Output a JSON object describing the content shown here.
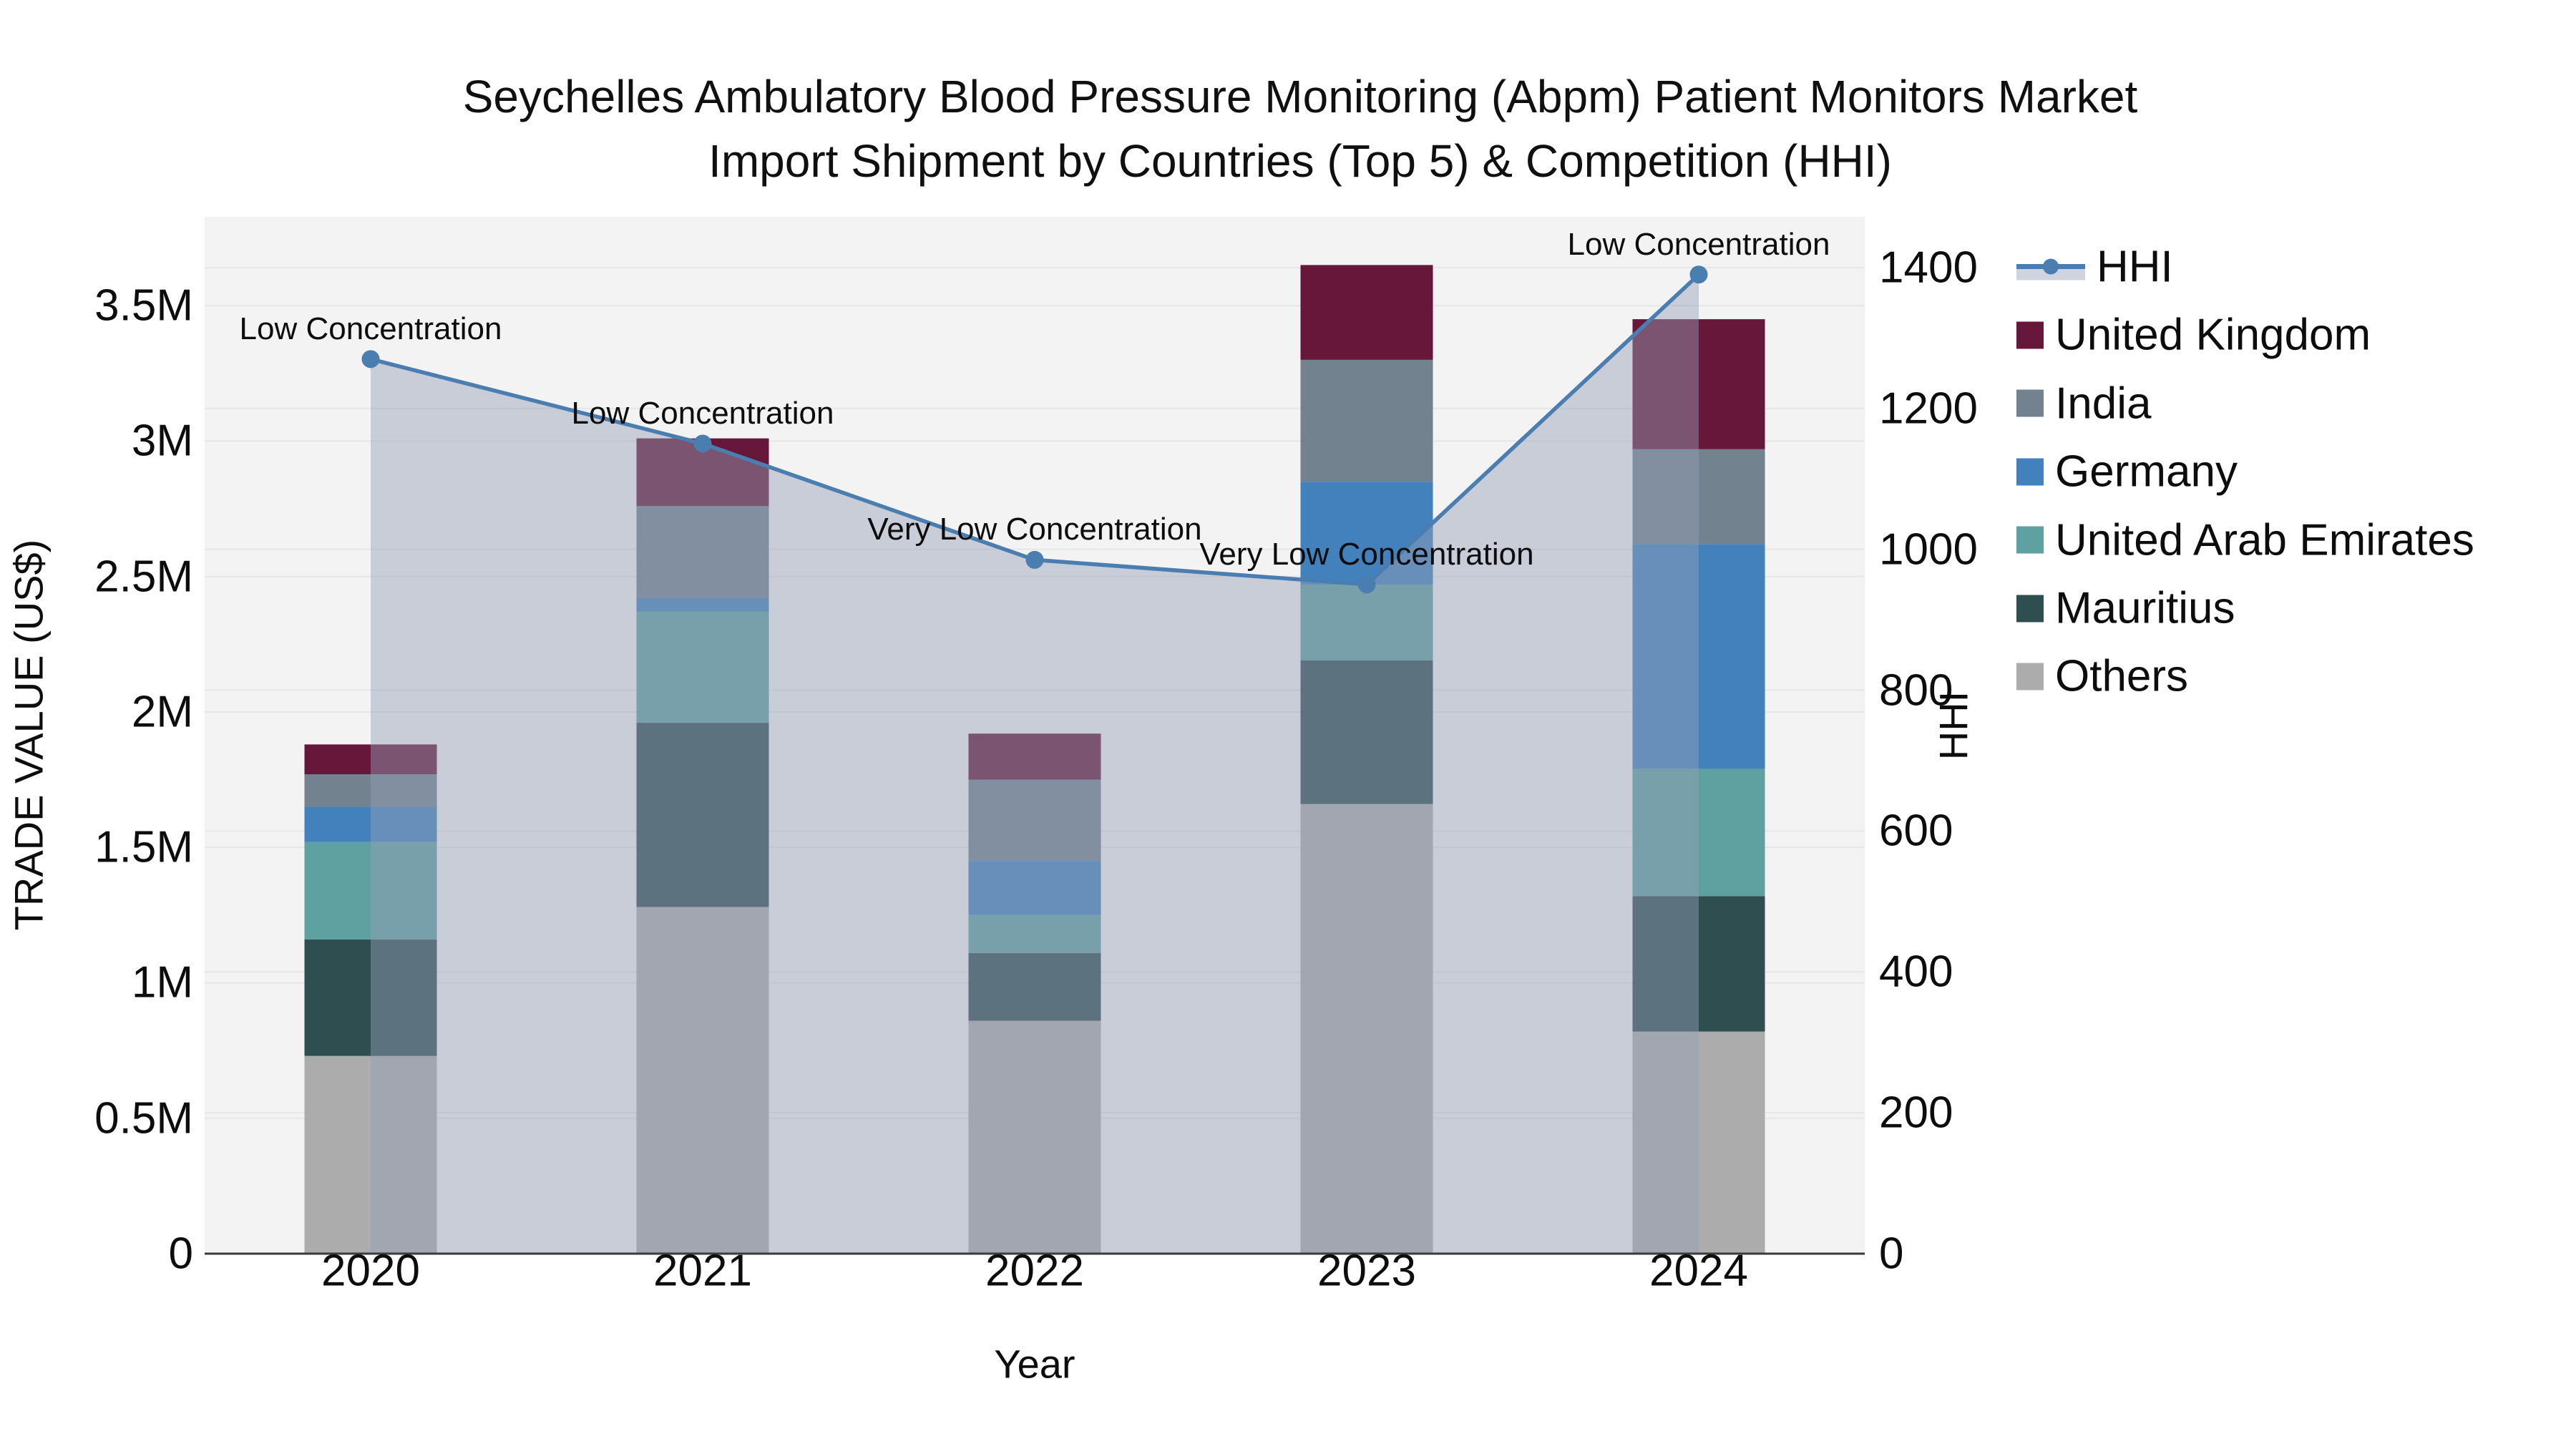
{
  "title": {
    "line1": "Seychelles Ambulatory Blood Pressure Monitoring (Abpm) Patient Monitors Market",
    "line2": "Import Shipment by Countries (Top 5) & Competition (HHI)"
  },
  "chart_data": {
    "type": "combo-stacked-bar-line",
    "categories": [
      "2020",
      "2021",
      "2022",
      "2023",
      "2024"
    ],
    "bar_series": [
      {
        "name": "Others",
        "color": "#ACACAC",
        "values": [
          730000,
          1280000,
          860000,
          1660000,
          820000
        ]
      },
      {
        "name": "Mauritius",
        "color": "#2E4E50",
        "values": [
          430000,
          680000,
          250000,
          530000,
          500000
        ]
      },
      {
        "name": "United Arab Emirates",
        "color": "#5FA0A1",
        "values": [
          360000,
          410000,
          140000,
          280000,
          470000
        ]
      },
      {
        "name": "Germany",
        "color": "#4281BB",
        "values": [
          130000,
          50000,
          200000,
          380000,
          830000
        ]
      },
      {
        "name": "India",
        "color": "#73828F",
        "values": [
          120000,
          340000,
          300000,
          450000,
          350000
        ]
      },
      {
        "name": "United Kingdom",
        "color": "#66173A",
        "values": [
          110000,
          250000,
          170000,
          350000,
          480000
        ]
      }
    ],
    "line_series": {
      "name": "HHI",
      "color": "#4A7EB0",
      "fill_color": "rgba(148,160,184,0.45)",
      "values": [
        1270,
        1150,
        985,
        950,
        1390
      ]
    },
    "annotations": [
      {
        "category": "2020",
        "text": "Low Concentration"
      },
      {
        "category": "2021",
        "text": "Low Concentration"
      },
      {
        "category": "2022",
        "text": "Very Low Concentration"
      },
      {
        "category": "2023",
        "text": "Very Low Concentration"
      },
      {
        "category": "2024",
        "text": "Low Concentration"
      }
    ],
    "axes": {
      "x": {
        "title": "Year"
      },
      "left": {
        "title": "TRADE VALUE (US$)",
        "tick_labels": [
          "0",
          "0.5M",
          "1M",
          "1.5M",
          "2M",
          "2.5M",
          "3M",
          "3.5M"
        ],
        "tick_values": [
          0,
          500000,
          1000000,
          1500000,
          2000000,
          2500000,
          3000000,
          3500000
        ],
        "max": 3828000
      },
      "right": {
        "title": "HHI",
        "tick_labels": [
          "0",
          "200",
          "400",
          "600",
          "800",
          "1000",
          "1200",
          "1400"
        ],
        "tick_values": [
          0,
          200,
          400,
          600,
          800,
          1000,
          1200,
          1400
        ],
        "max": 1472
      }
    },
    "legend_order": [
      "HHI",
      "United Kingdom",
      "India",
      "Germany",
      "United Arab Emirates",
      "Mauritius",
      "Others"
    ],
    "grid": true,
    "legend_position": "right"
  },
  "colors": {
    "plot_bg": "#F3F3F3",
    "grid": "#E6E6E8",
    "axis_line": "#3A3A3A",
    "text": "#0D0D0D"
  }
}
